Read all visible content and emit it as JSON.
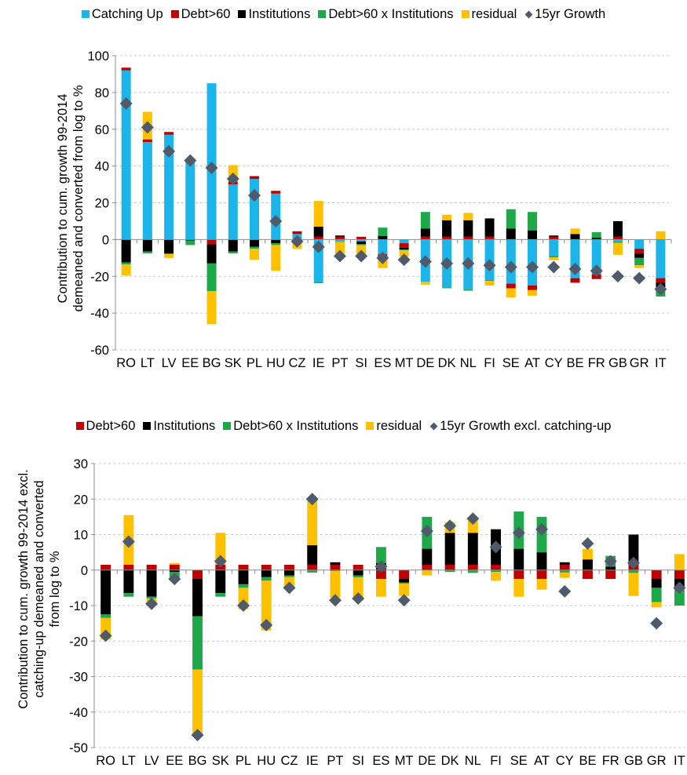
{
  "colors": {
    "catching_up": "#1CB5EA",
    "debt60": "#C00000",
    "institutions": "#000000",
    "interaction": "#1EA84A",
    "residual": "#FFC000",
    "growth_marker": "#4F5A6B",
    "gridline": "#C9C9C9"
  },
  "chart_data": [
    {
      "type": "bar",
      "stacked": true,
      "ylabel": "Contribution to cum. growth 99-2014\ndemeaned and converted from log to %",
      "ylim": [
        -60,
        100
      ],
      "yticks": [
        -60,
        -40,
        -20,
        0,
        20,
        40,
        60,
        80,
        100
      ],
      "grid": true,
      "legend_position": "top",
      "categories": [
        "RO",
        "LT",
        "LV",
        "EE",
        "BG",
        "SK",
        "PL",
        "HU",
        "CZ",
        "IE",
        "PT",
        "SI",
        "ES",
        "MT",
        "DE",
        "DK",
        "NL",
        "FI",
        "SE",
        "AT",
        "CY",
        "BE",
        "FR",
        "GB",
        "GR",
        "IT"
      ],
      "series": [
        {
          "name": "Catching Up",
          "color_key": "catching_up",
          "values": [
            92,
            53,
            57,
            42,
            85,
            30,
            33,
            25,
            3,
            -23,
            -1,
            -1,
            -8,
            -2,
            -23,
            -26,
            -27,
            -22,
            -24,
            -25,
            -9,
            -21,
            -19,
            -1,
            -5,
            -21
          ]
        },
        {
          "name": "Debt>60",
          "color_key": "debt60",
          "values": [
            1.5,
            1.5,
            1.5,
            1.5,
            -2.5,
            1.5,
            1.5,
            1.5,
            1.5,
            1.5,
            1.5,
            1.5,
            -2.5,
            -2.5,
            1.5,
            1.5,
            1.5,
            1.5,
            -2.5,
            -2.5,
            1.5,
            -2.5,
            -2.5,
            1.5,
            -2.5,
            -2.5
          ]
        },
        {
          "name": "Institutions",
          "color_key": "institutions",
          "values": [
            -12.5,
            -6.5,
            -7.5,
            -0.5,
            -10.5,
            -6.5,
            -4.0,
            -2.0,
            -1.5,
            5.5,
            0.7,
            -1.5,
            2.0,
            -1.0,
            4.5,
            9.0,
            9.0,
            10.0,
            6.0,
            5.0,
            0.7,
            3.0,
            1.0,
            8.5,
            -2.5,
            -2.5
          ]
        },
        {
          "name": "Debt>60 x Institutions",
          "color_key": "interaction",
          "values": [
            -1.0,
            -1.0,
            -0.5,
            -2.5,
            -15.0,
            -1.0,
            -1.0,
            -1.0,
            -0.5,
            -0.7,
            -0.3,
            -0.6,
            4.5,
            -0.3,
            9.0,
            -0.5,
            -0.8,
            -0.5,
            10.5,
            10.0,
            -0.7,
            0.0,
            3.0,
            -0.8,
            -4.0,
            -5.0
          ]
        },
        {
          "name": "residual",
          "color_key": "residual",
          "values": [
            -6.0,
            15.0,
            -2.0,
            0.5,
            -18.0,
            9.0,
            -6.0,
            -14.0,
            -3.0,
            14.0,
            -7.0,
            -5.5,
            -5.0,
            -3.5,
            -1.5,
            3.0,
            4.0,
            -2.5,
            -5.0,
            -3.0,
            -1.5,
            3.0,
            0.0,
            -6.5,
            -1.5,
            4.5
          ]
        },
        {
          "name": "15yr Growth",
          "type": "scatter",
          "marker": "diamond",
          "color_key": "growth_marker",
          "values": [
            74,
            61,
            48,
            43,
            39,
            33,
            24,
            10,
            -1,
            -4,
            -9,
            -9,
            -10,
            -11,
            -12,
            -13,
            -13,
            -14,
            -15,
            -15,
            -15,
            -16,
            -17,
            -20,
            -21,
            -27
          ]
        }
      ]
    },
    {
      "type": "bar",
      "stacked": true,
      "ylabel": "Contribution to cum. growth 99-2014 excl.\ncatching-up demeaned and converted\nfrom log to %",
      "ylim": [
        -50,
        30
      ],
      "yticks": [
        -50,
        -40,
        -30,
        -20,
        -10,
        0,
        10,
        20,
        30
      ],
      "grid": true,
      "legend_position": "top",
      "categories": [
        "RO",
        "LT",
        "LV",
        "EE",
        "BG",
        "SK",
        "PL",
        "HU",
        "CZ",
        "IE",
        "PT",
        "SI",
        "ES",
        "MT",
        "DE",
        "DK",
        "NL",
        "FI",
        "SE",
        "AT",
        "CY",
        "BE",
        "FR",
        "GB",
        "GR",
        "IT"
      ],
      "series": [
        {
          "name": "Debt>60",
          "color_key": "debt60",
          "values": [
            1.5,
            1.5,
            1.5,
            1.5,
            -2.5,
            1.5,
            1.5,
            1.5,
            1.5,
            1.5,
            1.5,
            1.5,
            -2.5,
            -2.5,
            1.5,
            1.5,
            1.5,
            1.5,
            -2.5,
            -2.5,
            1.5,
            -2.5,
            -2.5,
            1.5,
            -2.5,
            -2.5
          ]
        },
        {
          "name": "Institutions",
          "color_key": "institutions",
          "values": [
            -12.5,
            -6.5,
            -7.5,
            -0.5,
            -10.5,
            -6.5,
            -4.0,
            -2.0,
            -1.5,
            5.5,
            0.7,
            -1.5,
            2.0,
            -1.0,
            4.5,
            9.0,
            9.0,
            10.0,
            6.0,
            5.0,
            0.7,
            3.0,
            1.0,
            8.5,
            -2.5,
            -2.5
          ]
        },
        {
          "name": "Debt>60 x Institutions",
          "color_key": "interaction",
          "values": [
            -1.0,
            -1.0,
            -0.5,
            -2.5,
            -15.0,
            -1.0,
            -1.0,
            -1.0,
            -0.5,
            -0.7,
            -0.3,
            -0.6,
            4.5,
            -0.3,
            9.0,
            -0.5,
            -0.8,
            -0.5,
            10.5,
            10.0,
            -0.7,
            0.0,
            3.0,
            -0.8,
            -4.0,
            -5.0
          ]
        },
        {
          "name": "residual",
          "color_key": "residual",
          "values": [
            -6.0,
            14.0,
            -2.0,
            0.5,
            -18.0,
            9.0,
            -6.0,
            -14.0,
            -3.0,
            13.5,
            -7.5,
            -5.5,
            -5.0,
            -3.5,
            -1.5,
            3.0,
            4.0,
            -2.5,
            -5.0,
            -3.0,
            -1.5,
            3.0,
            0.0,
            -6.5,
            -1.5,
            4.5
          ]
        },
        {
          "name": "15yr Growth excl. catching-up",
          "type": "scatter",
          "marker": "diamond",
          "color_key": "growth_marker",
          "values": [
            -18.5,
            8,
            -9.5,
            -2.5,
            -46.5,
            2.5,
            -10,
            -15.5,
            -5,
            20,
            -8.5,
            -8,
            1,
            -8.5,
            11,
            12.5,
            14.5,
            6.5,
            10.5,
            11.5,
            -6,
            7.5,
            2.5,
            2,
            -15,
            -5
          ]
        }
      ]
    }
  ]
}
